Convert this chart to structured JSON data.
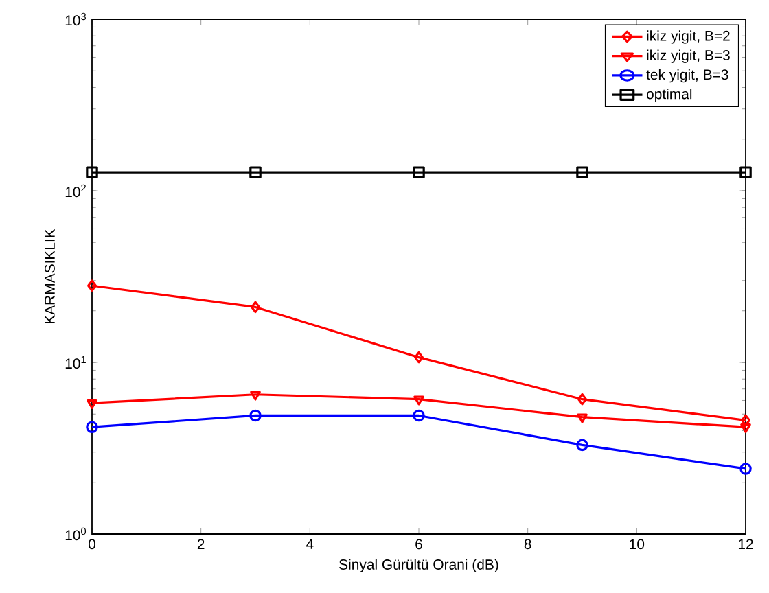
{
  "chart_data": {
    "type": "line",
    "xlabel": "Sinyal Gürültü Orani (dB)",
    "ylabel": "KARMASIKLIK",
    "x": [
      0,
      3,
      6,
      9,
      12
    ],
    "series": [
      {
        "name": "ikiz yigit, B=2",
        "color": "#ff0000",
        "marker": "diamond",
        "values": [
          28,
          21,
          10.7,
          6.1,
          4.6
        ]
      },
      {
        "name": "ikiz yigit, B=3",
        "color": "#ff0000",
        "marker": "triangle",
        "values": [
          5.8,
          6.5,
          6.1,
          4.8,
          4.2
        ]
      },
      {
        "name": "tek yigit, B=3",
        "color": "#0000ff",
        "marker": "circle",
        "values": [
          4.2,
          4.9,
          4.9,
          3.3,
          2.4
        ]
      },
      {
        "name": "optimal",
        "color": "#000000",
        "marker": "square",
        "values": [
          128,
          128,
          128,
          128,
          128
        ]
      }
    ],
    "log": "y",
    "xlim": [
      0,
      12
    ],
    "ylim": [
      1,
      1000
    ],
    "xticks": [
      0,
      2,
      4,
      6,
      8,
      10,
      12
    ],
    "yticks": [
      {
        "value": 1,
        "label": "10$^{0}$"
      },
      {
        "value": 10,
        "label": "10$^{1}$"
      },
      {
        "value": 100,
        "label": "10$^{2}$"
      },
      {
        "value": 1000,
        "label": "10$^{3}$"
      }
    ],
    "legend": "top right",
    "line_style": "solid"
  }
}
